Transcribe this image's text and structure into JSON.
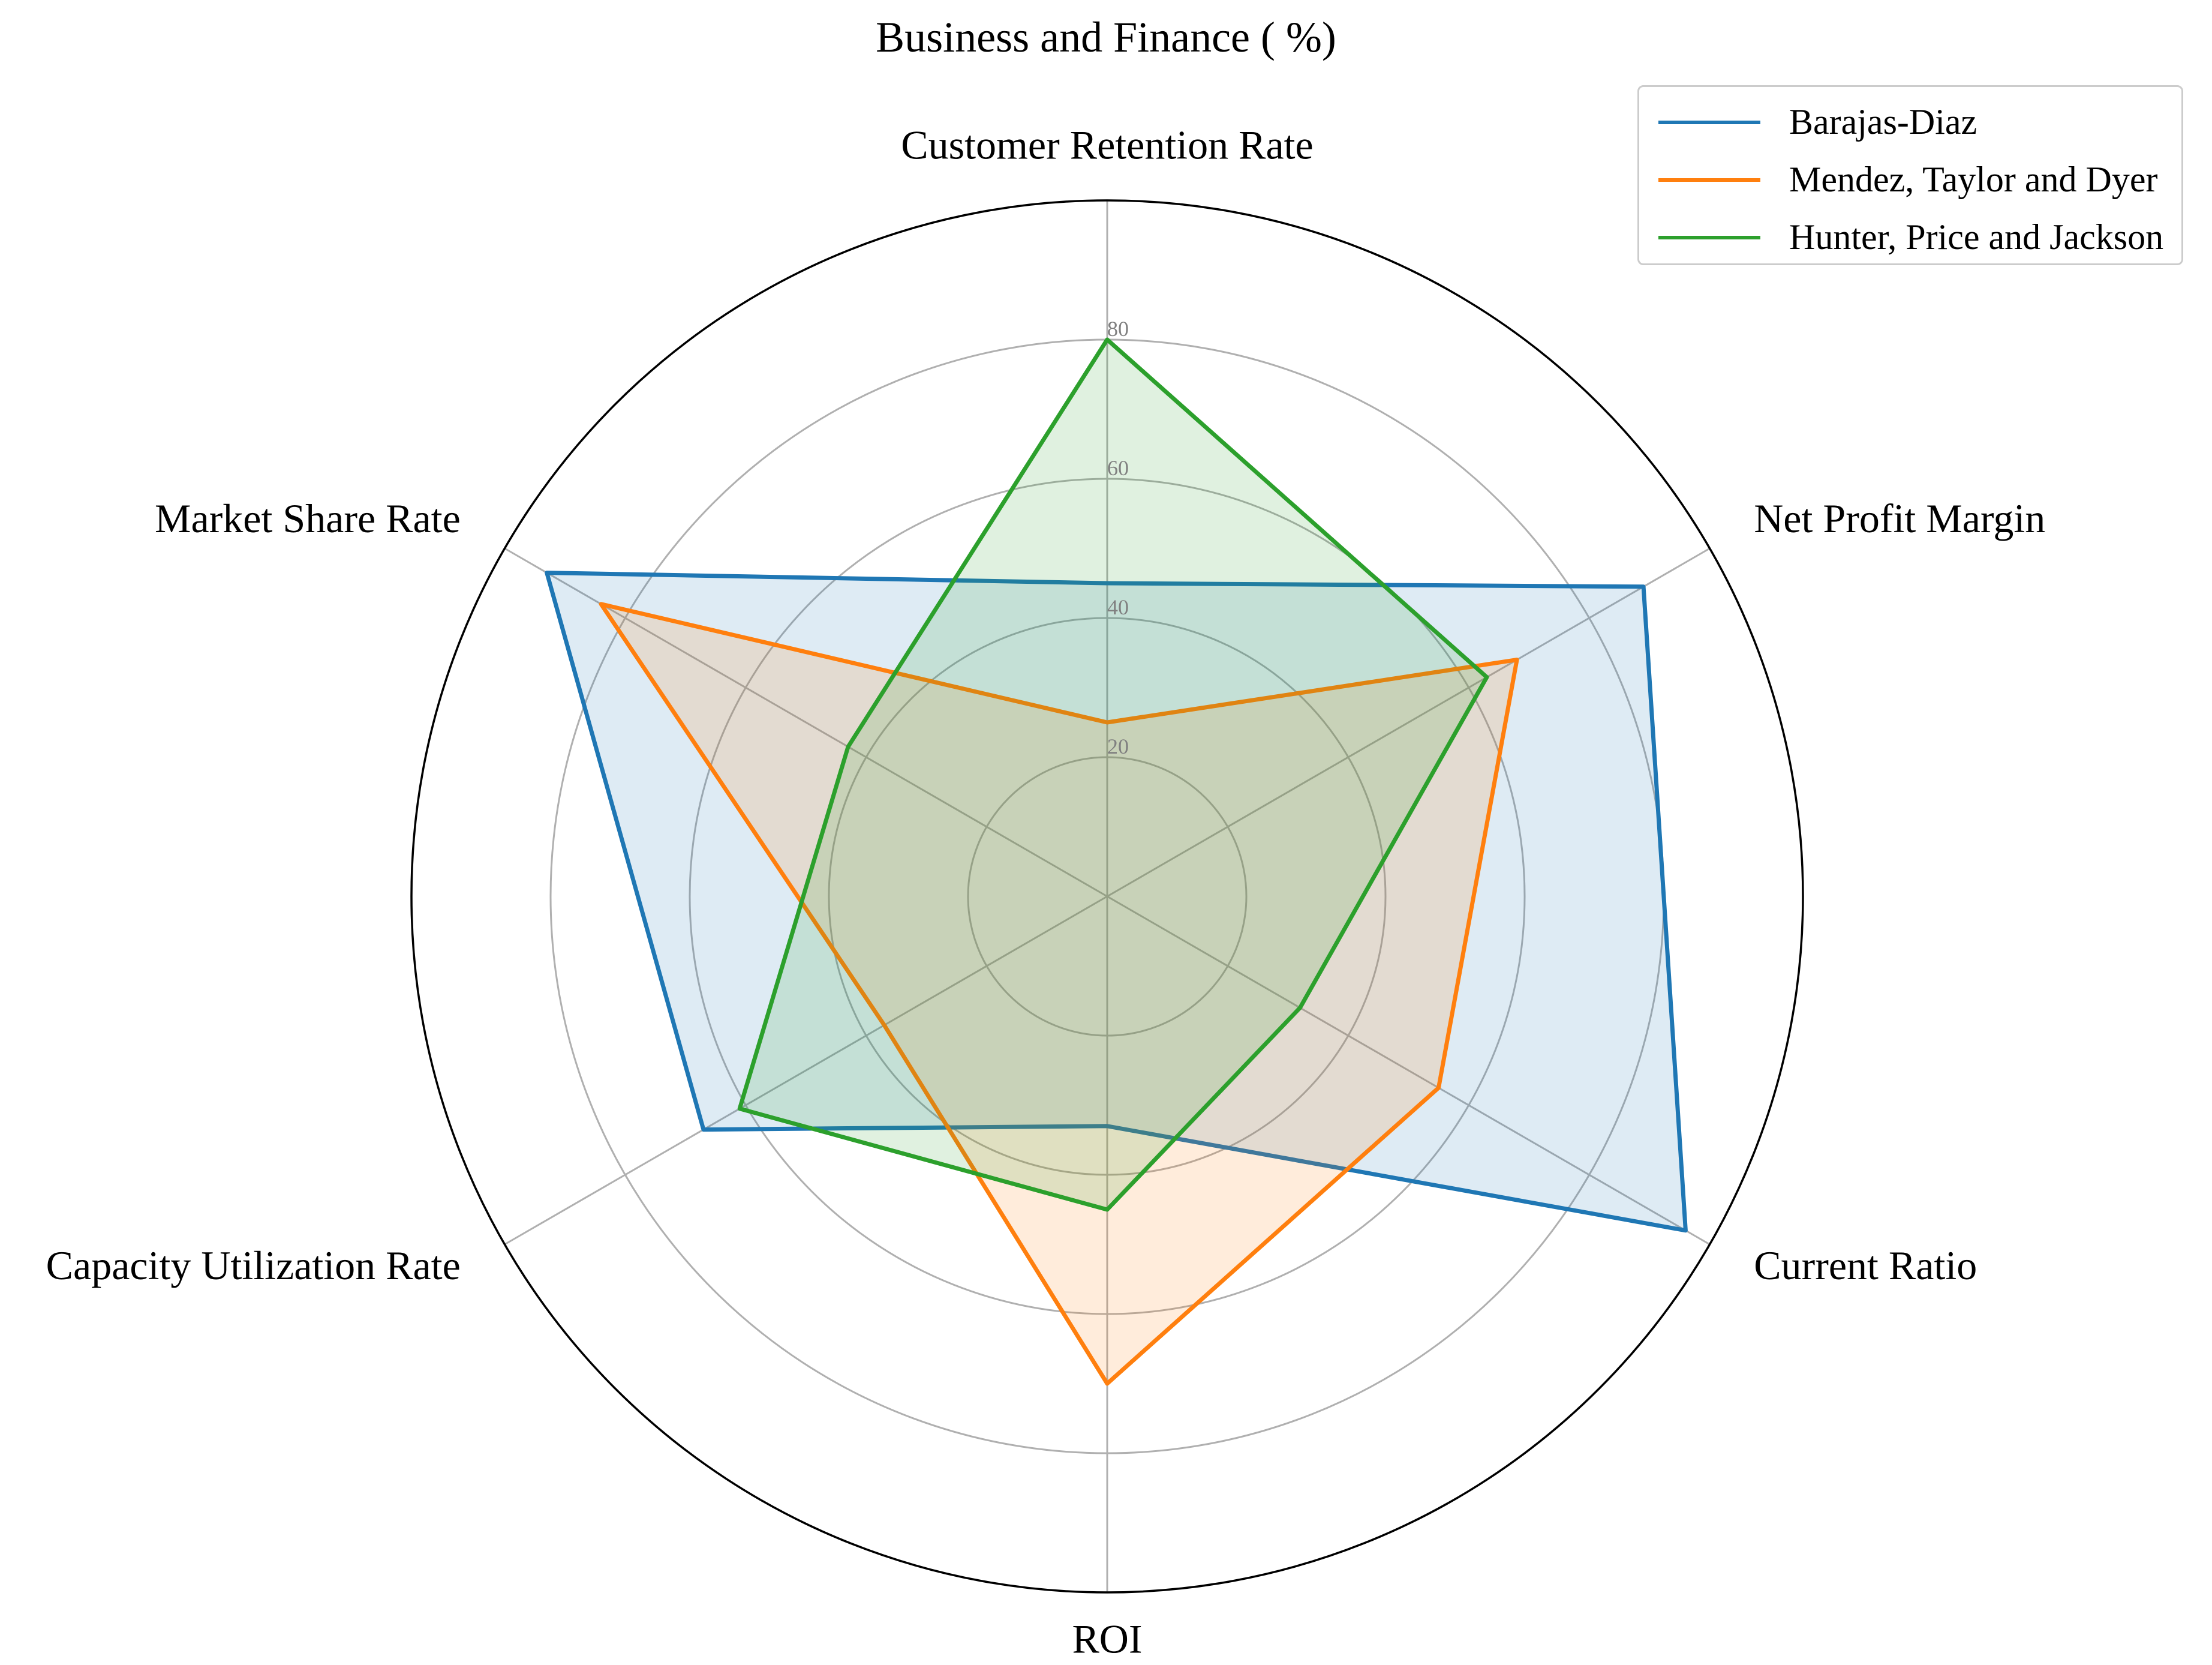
{
  "chart_data": {
    "type": "radar",
    "title": "Business and Finance ( %)",
    "categories": [
      "Customer Retention Rate",
      "Net Profit Margin",
      "Current Ratio",
      "ROI",
      "Capacity Utilization Rate",
      "Market Share Rate"
    ],
    "radial_ticks": [
      20,
      40,
      60,
      80
    ],
    "rlim": [
      0,
      100
    ],
    "grid": true,
    "legend": "top-right",
    "series": [
      {
        "name": "Barajas-Diaz",
        "color": "#1f77b4",
        "values": [
          45,
          89,
          96,
          33,
          67,
          93
        ]
      },
      {
        "name": "Mendez, Taylor and Dyer",
        "color": "#ff7f0e",
        "values": [
          25,
          68,
          55,
          70,
          37,
          84
        ]
      },
      {
        "name": "Hunter, Price and Jackson",
        "color": "#2ca02c",
        "values": [
          80,
          63,
          32,
          45,
          61,
          43
        ]
      }
    ]
  }
}
